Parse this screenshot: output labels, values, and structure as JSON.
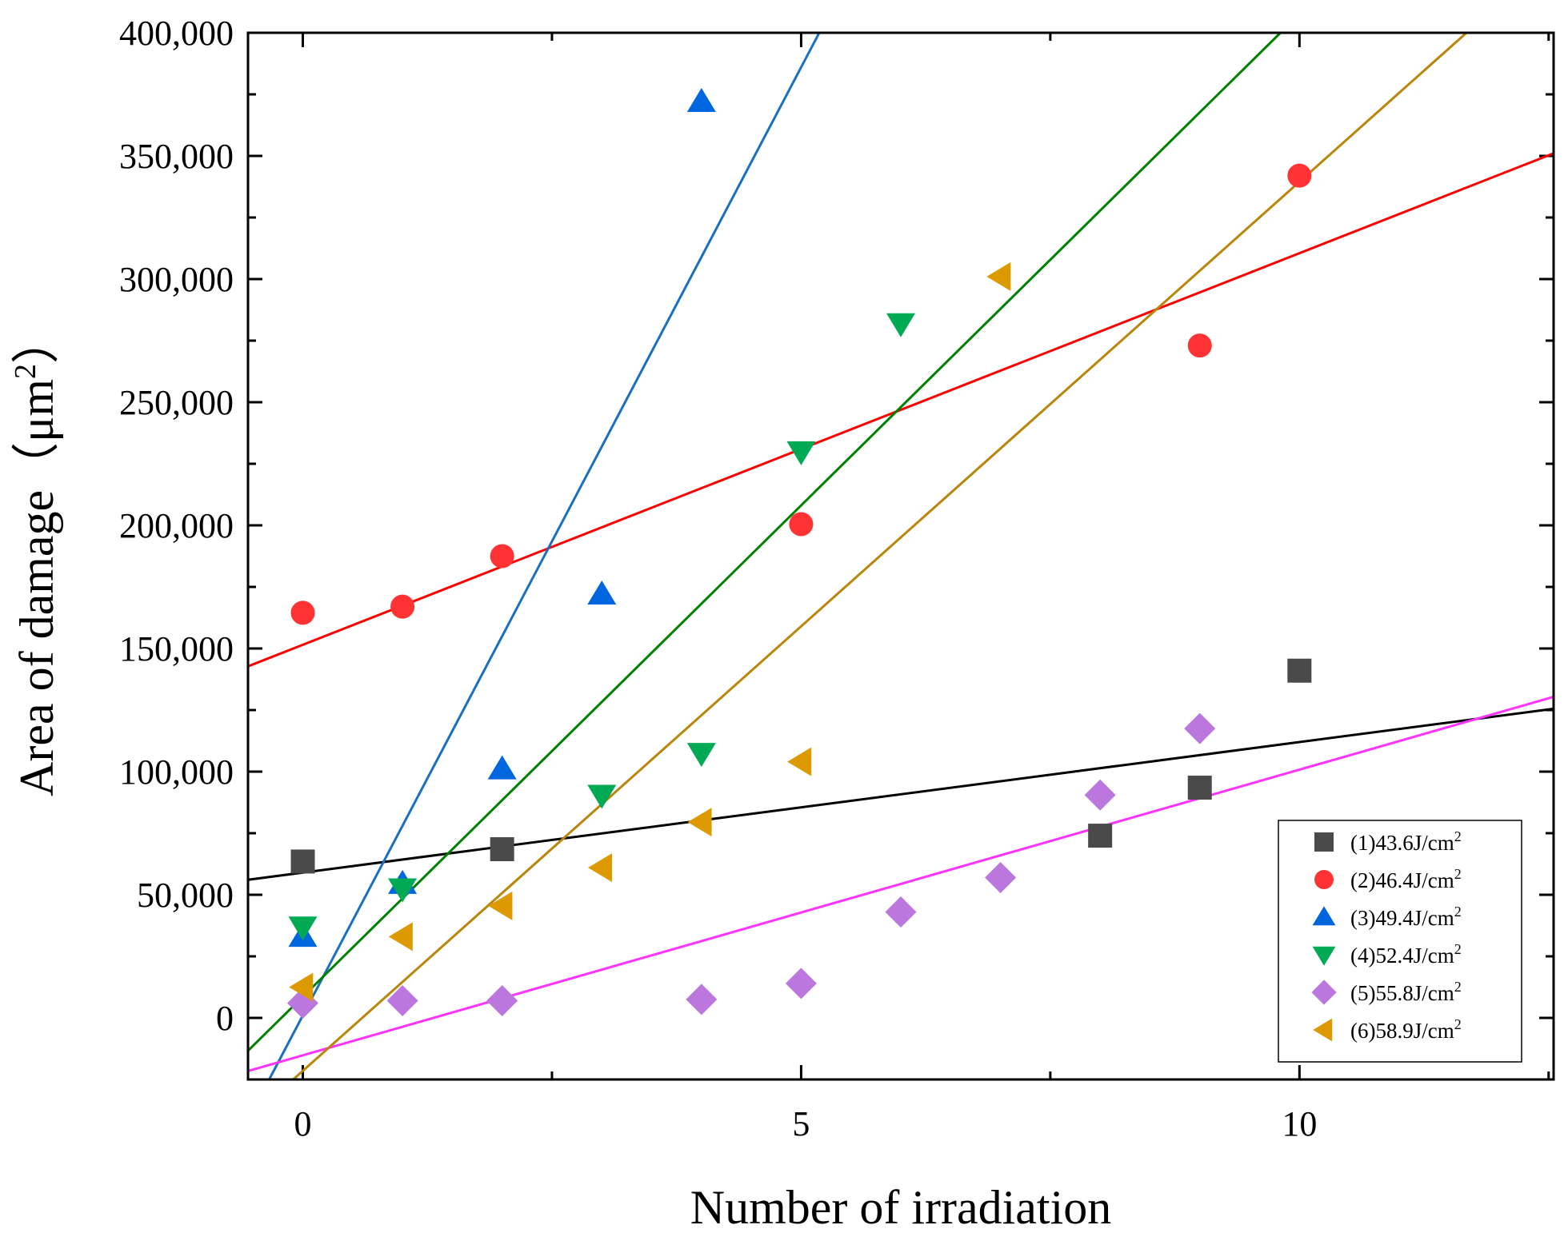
{
  "chart_data": {
    "type": "scatter",
    "xlabel": "Number of irradiation",
    "ylabel_prefix": "Area of damage（μm",
    "ylabel_sup": "2",
    "ylabel_suffix": "）",
    "xlim": [
      -0.55,
      12.55
    ],
    "ylim": [
      -25000,
      400000
    ],
    "x_ticks": [
      0,
      5,
      10
    ],
    "x_tick_labels": [
      "0",
      "5",
      "10"
    ],
    "y_ticks": [
      0,
      50000,
      100000,
      150000,
      200000,
      250000,
      300000,
      350000,
      400000
    ],
    "y_tick_labels": [
      "0",
      "50,000",
      "100,000",
      "150,000",
      "200,000",
      "250,000",
      "300,000",
      "350,000",
      "400,000"
    ],
    "legend_position": "bottom-right",
    "series": [
      {
        "name": "(1)43.6J/cm",
        "sup": "2",
        "marker": "square",
        "color": "#4a4a4a",
        "line_color": "#000000",
        "points": [
          [
            0,
            63500
          ],
          [
            2,
            68500
          ],
          [
            8,
            74000
          ],
          [
            9,
            93500
          ],
          [
            10,
            141000
          ]
        ],
        "fit": {
          "slope": 5300,
          "intercept": 59000
        }
      },
      {
        "name": "(2)46.4J/cm",
        "sup": "2",
        "marker": "circle",
        "color": "#ff3333",
        "line_color": "#ff0000",
        "points": [
          [
            0,
            164500
          ],
          [
            1,
            167000
          ],
          [
            2,
            187500
          ],
          [
            5,
            200500
          ],
          [
            9,
            273000
          ],
          [
            10,
            342000
          ]
        ],
        "fit": {
          "slope": 15900,
          "intercept": 151500
        }
      },
      {
        "name": "(3)49.4J/cm",
        "sup": "2",
        "marker": "triangle-up",
        "color": "#0066dd",
        "line_color": "#1a6fbf",
        "points": [
          [
            0,
            33000
          ],
          [
            1,
            54500
          ],
          [
            2,
            101000
          ],
          [
            3,
            172000
          ],
          [
            4,
            372000
          ]
        ],
        "fit": {
          "slope": 77000,
          "intercept": 1000
        }
      },
      {
        "name": "(4)52.4J/cm",
        "sup": "2",
        "marker": "triangle-down",
        "color": "#00aa55",
        "line_color": "#008000",
        "points": [
          [
            0,
            37000
          ],
          [
            1,
            52500
          ],
          [
            3,
            90500
          ],
          [
            4,
            107500
          ],
          [
            5,
            230000
          ],
          [
            6,
            282000
          ]
        ],
        "fit": {
          "slope": 39900,
          "intercept": 8600
        }
      },
      {
        "name": "(5)55.8J/cm",
        "sup": "2",
        "marker": "diamond",
        "color": "#bb77dd",
        "line_color": "#ff33ff",
        "points": [
          [
            0,
            6000
          ],
          [
            1,
            7000
          ],
          [
            2,
            7000
          ],
          [
            4,
            7500
          ],
          [
            5,
            14000
          ],
          [
            6,
            43000
          ],
          [
            7,
            57000
          ],
          [
            8,
            90500
          ],
          [
            9,
            117500
          ]
        ],
        "fit": {
          "slope": 11600,
          "intercept": -15200
        }
      },
      {
        "name": "(6)58.9J/cm",
        "sup": "2",
        "marker": "triangle-left",
        "color": "#dd9900",
        "line_color": "#b8860b",
        "points": [
          [
            0,
            12500
          ],
          [
            1,
            33000
          ],
          [
            2,
            45500
          ],
          [
            3,
            61000
          ],
          [
            4,
            79500
          ],
          [
            5,
            104000
          ],
          [
            7,
            301000
          ]
        ],
        "fit": {
          "slope": 36100,
          "intercept": -21500
        }
      }
    ]
  }
}
